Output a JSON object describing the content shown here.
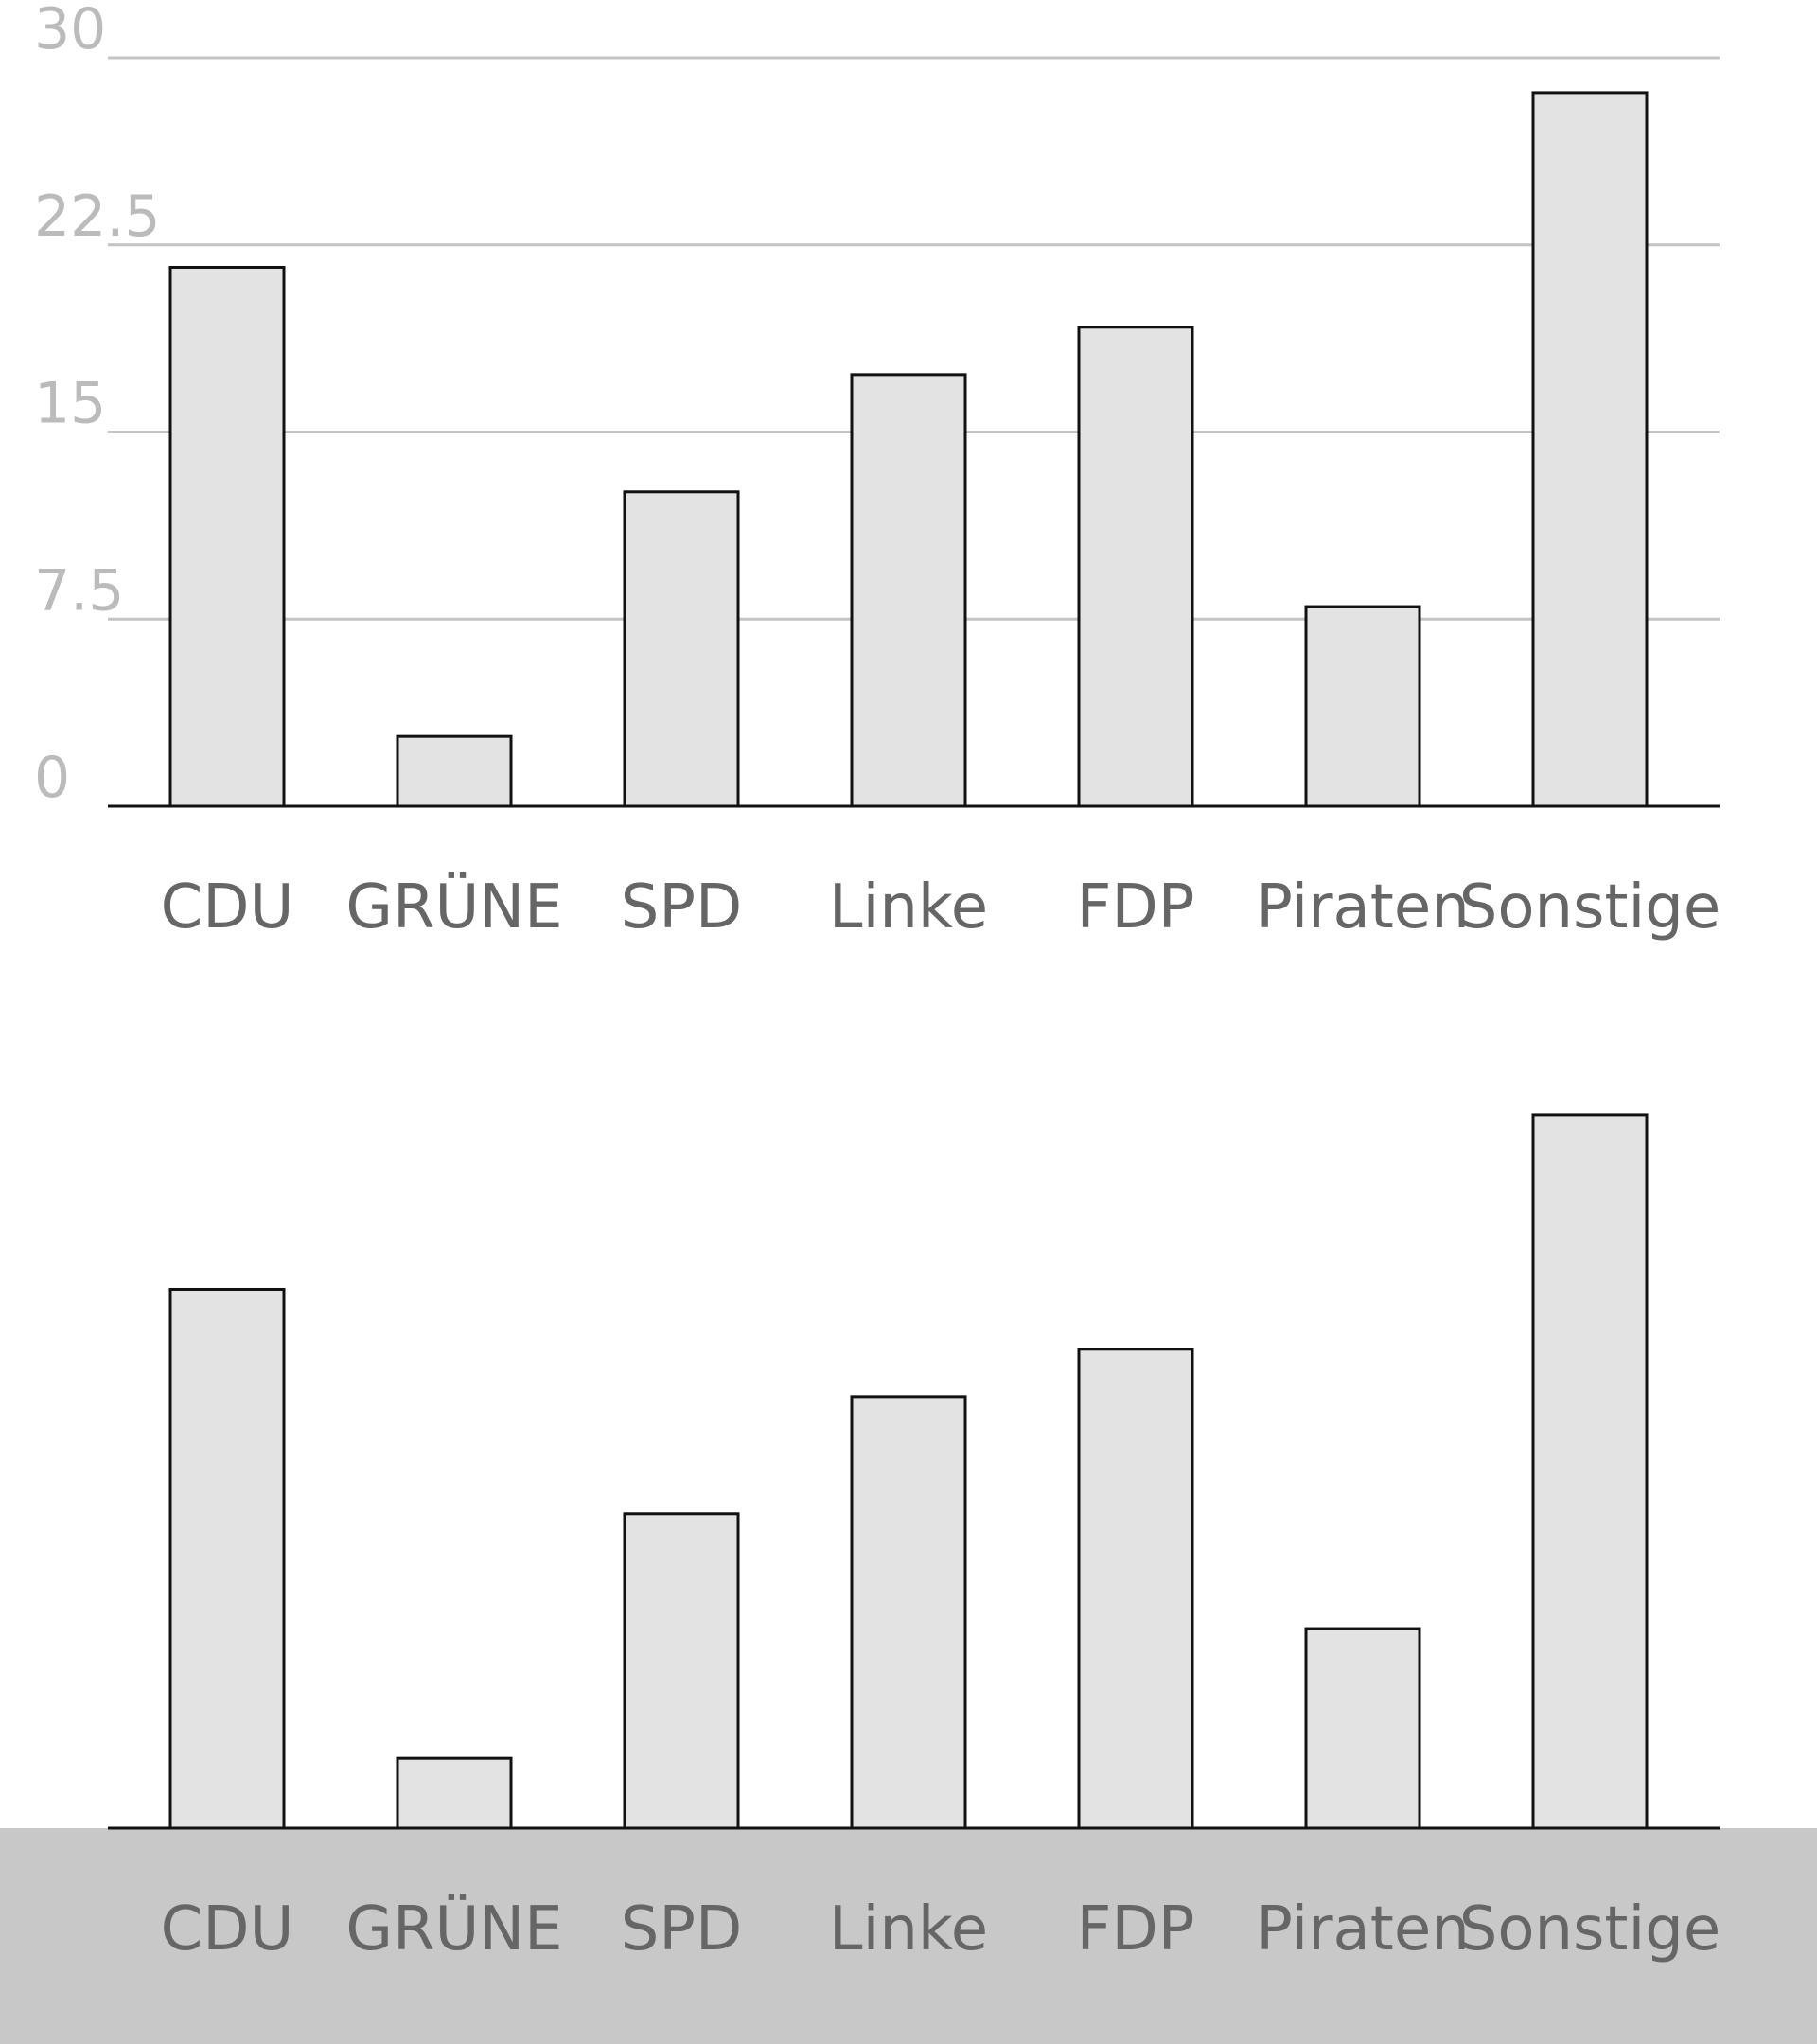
{
  "colors": {
    "bar_fill": "#e3e3e3",
    "bar_stroke": "#111111",
    "grid": "#c4c4c4",
    "tick_text": "#bbbbbb",
    "label_text": "#666666",
    "band": "#c8c8c8"
  },
  "chart_data": [
    {
      "type": "bar",
      "categories": [
        "CDU",
        "GRÜNE",
        "SPD",
        "Linke",
        "FDP",
        "Piraten",
        "Sonstige"
      ],
      "values": [
        21.6,
        2.8,
        12.6,
        17.3,
        19.2,
        8.0,
        28.6
      ],
      "yticks": [
        "0",
        "7.5",
        "15",
        "22.5",
        "30"
      ],
      "ylim": [
        0,
        30
      ],
      "grid": true
    },
    {
      "type": "bar",
      "categories": [
        "CDU",
        "GRÜNE",
        "SPD",
        "Linke",
        "FDP",
        "Piraten",
        "Sonstige"
      ],
      "values": [
        21.6,
        2.8,
        12.6,
        17.3,
        19.2,
        8.0,
        28.6
      ],
      "ylim": [
        0,
        30
      ],
      "grid": false
    }
  ]
}
